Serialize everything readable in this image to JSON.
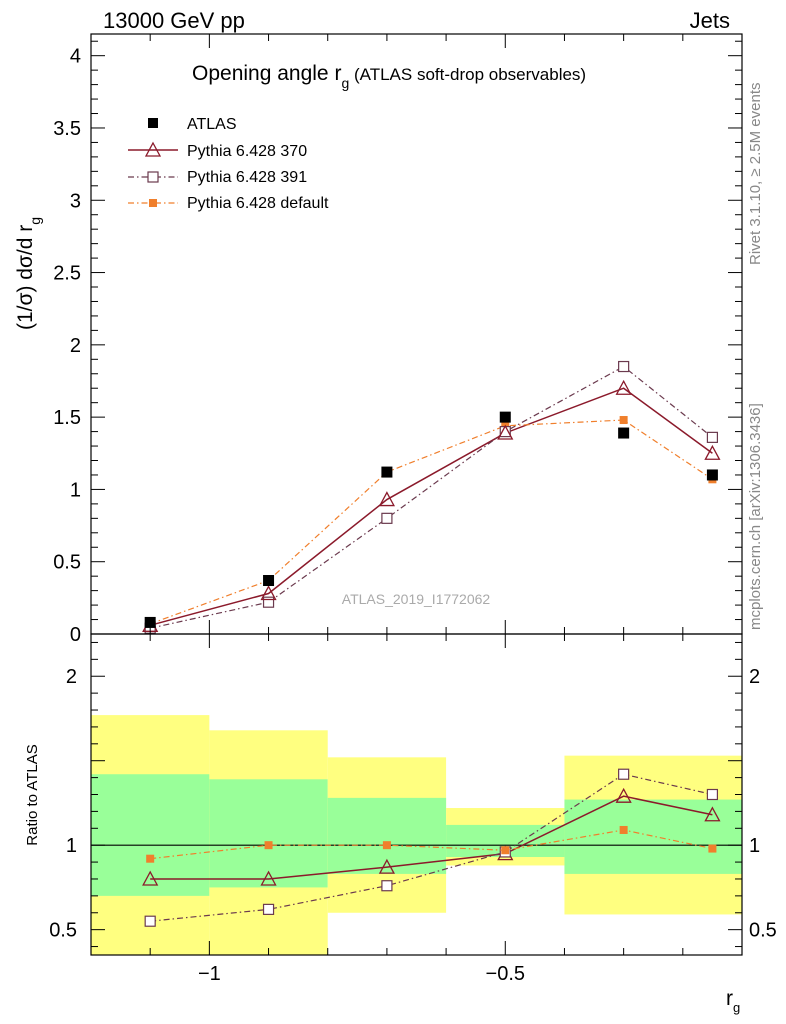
{
  "header": {
    "left": "13000 GeV pp",
    "right": "Jets"
  },
  "side_texts": {
    "rivet": "Rivet 3.1.10, ≥ 2.5M events",
    "mcplots": "mcplots.cern.ch [arXiv:1306.3436]"
  },
  "chart_data": [
    {
      "type": "scatter",
      "title": "Opening angle r",
      "title_sub": "g",
      "title_suffix": " (ATLAS soft-drop observables)",
      "ylabel": "(1/σ) dσ/d r",
      "ylabel_sub": "g",
      "watermark": "ATLAS_2019_I1772062",
      "xlim": [
        -1.2,
        -0.1
      ],
      "ylim": [
        0,
        4.15
      ],
      "log_x": false,
      "y_ticks": [
        {
          "v": 0,
          "label": "0"
        },
        {
          "v": 0.5,
          "label": "0.5"
        },
        {
          "v": 1,
          "label": "1"
        },
        {
          "v": 1.5,
          "label": "1.5"
        },
        {
          "v": 2,
          "label": "2"
        },
        {
          "v": 2.5,
          "label": "2.5"
        },
        {
          "v": 3,
          "label": "3"
        },
        {
          "v": 3.5,
          "label": "3.5"
        },
        {
          "v": 4,
          "label": "4"
        }
      ],
      "x": [
        -1.1,
        -0.9,
        -0.7,
        -0.5,
        -0.3,
        -0.15
      ],
      "legend_position": "top-left",
      "series": [
        {
          "name": "ATLAS",
          "style": "data",
          "color": "#000000",
          "values": [
            0.08,
            0.37,
            1.12,
            1.5,
            1.39,
            1.1
          ]
        },
        {
          "name": "Pythia 6.428 370",
          "style": "triangle-solid",
          "color": "#8b1a2b",
          "values": [
            0.06,
            0.28,
            0.93,
            1.39,
            1.7,
            1.25
          ]
        },
        {
          "name": "Pythia 6.428 391",
          "style": "square-dashdot",
          "color": "#6b3a4e",
          "values": [
            0.04,
            0.22,
            0.8,
            1.4,
            1.85,
            1.36
          ]
        },
        {
          "name": "Pythia 6.428 default",
          "style": "filled-square-dashdot",
          "color": "#f07f2c",
          "values": [
            0.07,
            0.37,
            1.12,
            1.44,
            1.48,
            1.07
          ]
        }
      ]
    },
    {
      "type": "scatter",
      "ylabel": "Ratio to ATLAS",
      "xlabel": "r",
      "xlabel_sub": "g",
      "xlim": [
        -1.2,
        -0.1
      ],
      "ylim": [
        0.35,
        2.25
      ],
      "x_ticks": [
        {
          "v": -1,
          "label": "−1"
        },
        {
          "v": -0.5,
          "label": "−0.5"
        }
      ],
      "y_ticks": [
        {
          "v": 0.5,
          "label": "0.5"
        },
        {
          "v": 1,
          "label": "1"
        },
        {
          "v": 2,
          "label": "2"
        }
      ],
      "reference_line": 1,
      "bands": [
        {
          "x0": -1.2,
          "x1": -1.0,
          "yellow": [
            0.35,
            1.77
          ],
          "green": [
            0.7,
            1.42
          ]
        },
        {
          "x0": -1.0,
          "x1": -0.8,
          "yellow": [
            0.35,
            1.68
          ],
          "green": [
            0.75,
            1.39
          ]
        },
        {
          "x0": -0.8,
          "x1": -0.6,
          "yellow": [
            0.6,
            1.52
          ],
          "green": [
            0.83,
            1.28
          ]
        },
        {
          "x0": -0.6,
          "x1": -0.4,
          "yellow": [
            0.88,
            1.22
          ],
          "green": [
            0.93,
            1.12
          ]
        },
        {
          "x0": -0.4,
          "x1": -0.1,
          "yellow": [
            0.59,
            1.53
          ],
          "green": [
            0.83,
            1.27
          ]
        }
      ],
      "x": [
        -1.1,
        -0.9,
        -0.7,
        -0.5,
        -0.3,
        -0.15
      ],
      "series": [
        {
          "name": "Pythia 6.428 370",
          "style": "triangle-solid",
          "color": "#8b1a2b",
          "values": [
            0.8,
            0.8,
            0.87,
            0.95,
            1.29,
            1.18
          ]
        },
        {
          "name": "Pythia 6.428 391",
          "style": "square-dashdot",
          "color": "#6b3a4e",
          "values": [
            0.55,
            0.62,
            0.76,
            0.96,
            1.42,
            1.3
          ]
        },
        {
          "name": "Pythia 6.428 default",
          "style": "filled-square-dashdot",
          "color": "#f07f2c",
          "values": [
            0.92,
            1.0,
            1.0,
            0.97,
            1.09,
            0.98
          ]
        }
      ]
    }
  ]
}
